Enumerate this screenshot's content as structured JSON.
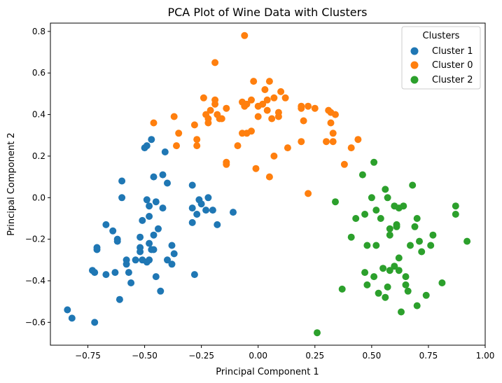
{
  "chart_data": {
    "type": "scatter",
    "title": "PCA Plot of Wine Data with Clusters",
    "xlabel": "Principal Component 1",
    "ylabel": "Principal Component 2",
    "xlim": [
      -0.915,
      1.0
    ],
    "ylim": [
      -0.71,
      0.84
    ],
    "xticks": [
      -0.75,
      -0.5,
      -0.25,
      0.0,
      0.25,
      0.5,
      0.75,
      1.0
    ],
    "xtick_labels": [
      "−0.75",
      "−0.50",
      "−0.25",
      "0.00",
      "0.25",
      "0.50",
      "0.75",
      "1.00"
    ],
    "yticks": [
      -0.6,
      -0.4,
      -0.2,
      0.0,
      0.2,
      0.4,
      0.6,
      0.8
    ],
    "ytick_labels": [
      "−0.6",
      "−0.4",
      "−0.2",
      "0.0",
      "0.2",
      "0.4",
      "0.6",
      "0.8"
    ],
    "grid": false,
    "legend": {
      "title": "Clusters",
      "placement": "top-right"
    },
    "series": [
      {
        "name": "Cluster 1",
        "color": "#1f77b4",
        "points": [
          [
            -0.84,
            -0.54
          ],
          [
            -0.82,
            -0.58
          ],
          [
            -0.73,
            -0.35
          ],
          [
            -0.72,
            -0.36
          ],
          [
            -0.72,
            -0.6
          ],
          [
            -0.71,
            -0.24
          ],
          [
            -0.71,
            -0.25
          ],
          [
            -0.67,
            -0.13
          ],
          [
            -0.67,
            -0.37
          ],
          [
            -0.64,
            -0.16
          ],
          [
            -0.63,
            -0.36
          ],
          [
            -0.62,
            -0.21
          ],
          [
            -0.62,
            -0.2
          ],
          [
            -0.61,
            -0.49
          ],
          [
            -0.6,
            0.08
          ],
          [
            -0.6,
            0.0
          ],
          [
            -0.58,
            -0.32
          ],
          [
            -0.58,
            -0.3
          ],
          [
            -0.57,
            -0.36
          ],
          [
            -0.56,
            -0.41
          ],
          [
            -0.54,
            -0.3
          ],
          [
            -0.52,
            -0.26
          ],
          [
            -0.52,
            -0.24
          ],
          [
            -0.52,
            -0.19
          ],
          [
            -0.51,
            -0.11
          ],
          [
            -0.51,
            -0.3
          ],
          [
            -0.5,
            0.24
          ],
          [
            -0.49,
            0.25
          ],
          [
            -0.49,
            -0.31
          ],
          [
            -0.49,
            -0.01
          ],
          [
            -0.48,
            -0.09
          ],
          [
            -0.48,
            -0.04
          ],
          [
            -0.48,
            -0.3
          ],
          [
            -0.48,
            -0.22
          ],
          [
            -0.47,
            -0.25
          ],
          [
            -0.47,
            0.28
          ],
          [
            -0.46,
            0.1
          ],
          [
            -0.46,
            -0.18
          ],
          [
            -0.46,
            -0.25
          ],
          [
            -0.45,
            -0.38
          ],
          [
            -0.45,
            -0.02
          ],
          [
            -0.44,
            -0.15
          ],
          [
            -0.43,
            -0.45
          ],
          [
            -0.42,
            0.11
          ],
          [
            -0.42,
            -0.05
          ],
          [
            -0.41,
            0.22
          ],
          [
            -0.4,
            0.07
          ],
          [
            -0.4,
            -0.3
          ],
          [
            -0.38,
            -0.23
          ],
          [
            -0.38,
            -0.32
          ],
          [
            -0.37,
            -0.27
          ],
          [
            -0.29,
            0.06
          ],
          [
            -0.29,
            -0.05
          ],
          [
            -0.29,
            -0.12
          ],
          [
            -0.28,
            -0.37
          ],
          [
            -0.27,
            -0.08
          ],
          [
            -0.26,
            -0.01
          ],
          [
            -0.25,
            -0.03
          ],
          [
            -0.23,
            -0.06
          ],
          [
            -0.22,
            0.0
          ],
          [
            -0.2,
            -0.06
          ],
          [
            -0.18,
            -0.13
          ],
          [
            -0.11,
            -0.07
          ]
        ]
      },
      {
        "name": "Cluster 0",
        "color": "#ff7f0e",
        "points": [
          [
            -0.46,
            0.36
          ],
          [
            -0.37,
            0.39
          ],
          [
            -0.36,
            0.25
          ],
          [
            -0.35,
            0.31
          ],
          [
            -0.28,
            0.35
          ],
          [
            -0.27,
            0.28
          ],
          [
            -0.27,
            0.25
          ],
          [
            -0.24,
            0.48
          ],
          [
            -0.23,
            0.4
          ],
          [
            -0.22,
            0.36
          ],
          [
            -0.22,
            0.38
          ],
          [
            -0.21,
            0.42
          ],
          [
            -0.19,
            0.45
          ],
          [
            -0.19,
            0.65
          ],
          [
            -0.19,
            0.47
          ],
          [
            -0.18,
            0.4
          ],
          [
            -0.17,
            0.38
          ],
          [
            -0.16,
            0.38
          ],
          [
            -0.14,
            0.43
          ],
          [
            -0.14,
            0.17
          ],
          [
            -0.14,
            0.16
          ],
          [
            -0.09,
            0.25
          ],
          [
            -0.07,
            0.46
          ],
          [
            -0.07,
            0.31
          ],
          [
            -0.06,
            0.78
          ],
          [
            -0.06,
            0.44
          ],
          [
            -0.05,
            0.31
          ],
          [
            -0.05,
            0.45
          ],
          [
            -0.03,
            0.32
          ],
          [
            -0.03,
            0.47
          ],
          [
            -0.02,
            0.56
          ],
          [
            -0.01,
            0.14
          ],
          [
            0.0,
            0.39
          ],
          [
            0.0,
            0.44
          ],
          [
            0.02,
            0.45
          ],
          [
            0.03,
            0.52
          ],
          [
            0.04,
            0.47
          ],
          [
            0.04,
            0.42
          ],
          [
            0.05,
            0.1
          ],
          [
            0.05,
            0.56
          ],
          [
            0.06,
            0.38
          ],
          [
            0.07,
            0.48
          ],
          [
            0.07,
            0.2
          ],
          [
            0.09,
            0.39
          ],
          [
            0.09,
            0.41
          ],
          [
            0.1,
            0.51
          ],
          [
            0.12,
            0.48
          ],
          [
            0.13,
            0.24
          ],
          [
            0.19,
            0.27
          ],
          [
            0.19,
            0.43
          ],
          [
            0.19,
            0.44
          ],
          [
            0.2,
            0.37
          ],
          [
            0.22,
            0.44
          ],
          [
            0.22,
            0.02
          ],
          [
            0.25,
            0.43
          ],
          [
            0.3,
            0.27
          ],
          [
            0.31,
            0.42
          ],
          [
            0.32,
            0.36
          ],
          [
            0.32,
            0.41
          ],
          [
            0.33,
            0.31
          ],
          [
            0.33,
            0.27
          ],
          [
            0.34,
            0.4
          ],
          [
            0.38,
            0.16
          ],
          [
            0.41,
            0.24
          ],
          [
            0.44,
            0.28
          ]
        ]
      },
      {
        "name": "Cluster 2",
        "color": "#2ca02c",
        "points": [
          [
            0.26,
            -0.65
          ],
          [
            0.34,
            -0.02
          ],
          [
            0.37,
            -0.44
          ],
          [
            0.41,
            -0.19
          ],
          [
            0.43,
            -0.1
          ],
          [
            0.46,
            0.11
          ],
          [
            0.47,
            -0.08
          ],
          [
            0.47,
            -0.36
          ],
          [
            0.48,
            -0.23
          ],
          [
            0.48,
            -0.42
          ],
          [
            0.5,
            0.0
          ],
          [
            0.51,
            0.17
          ],
          [
            0.51,
            -0.38
          ],
          [
            0.52,
            -0.06
          ],
          [
            0.52,
            -0.23
          ],
          [
            0.53,
            -0.46
          ],
          [
            0.54,
            -0.1
          ],
          [
            0.55,
            -0.34
          ],
          [
            0.56,
            0.04
          ],
          [
            0.56,
            -0.48
          ],
          [
            0.57,
            0.0
          ],
          [
            0.57,
            -0.43
          ],
          [
            0.58,
            -0.15
          ],
          [
            0.58,
            -0.18
          ],
          [
            0.58,
            -0.35
          ],
          [
            0.6,
            -0.33
          ],
          [
            0.6,
            -0.04
          ],
          [
            0.61,
            -0.13
          ],
          [
            0.61,
            -0.14
          ],
          [
            0.62,
            -0.05
          ],
          [
            0.62,
            -0.29
          ],
          [
            0.62,
            -0.35
          ],
          [
            0.63,
            -0.55
          ],
          [
            0.64,
            -0.04
          ],
          [
            0.65,
            -0.38
          ],
          [
            0.65,
            -0.42
          ],
          [
            0.66,
            -0.45
          ],
          [
            0.67,
            -0.23
          ],
          [
            0.68,
            0.06
          ],
          [
            0.69,
            -0.14
          ],
          [
            0.7,
            -0.1
          ],
          [
            0.7,
            -0.52
          ],
          [
            0.71,
            -0.21
          ],
          [
            0.72,
            -0.26
          ],
          [
            0.74,
            -0.47
          ],
          [
            0.76,
            -0.23
          ],
          [
            0.77,
            -0.18
          ],
          [
            0.81,
            -0.41
          ],
          [
            0.87,
            -0.08
          ],
          [
            0.87,
            -0.04
          ],
          [
            0.92,
            -0.21
          ]
        ]
      }
    ]
  }
}
